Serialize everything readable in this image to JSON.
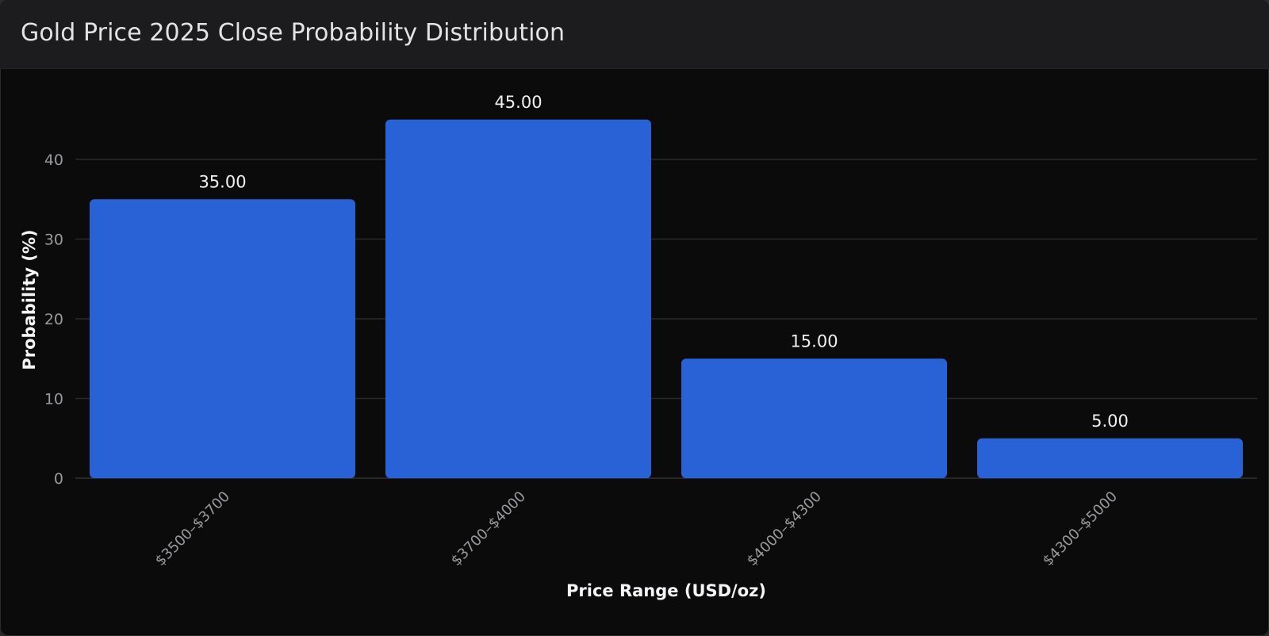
{
  "panel": {
    "title": "Gold Price 2025 Close Probability Distribution"
  },
  "colors": {
    "bar": "#2962d6",
    "grid": "#2a2a2c",
    "background": "#0b0b0b",
    "header": "#1c1c1e"
  },
  "chart_data": {
    "type": "bar",
    "categories": [
      "$3500–$3700",
      "$3700–$4000",
      "$4000–$4300",
      "$4300–$5000"
    ],
    "values": [
      35,
      45,
      15,
      5
    ],
    "value_labels": [
      "35.00",
      "45.00",
      "15.00",
      "5.00"
    ],
    "xlabel": "Price Range (USD/oz)",
    "ylabel": "Probability (%)",
    "yticks": [
      0,
      10,
      20,
      30,
      40
    ],
    "ylim": [
      0,
      45
    ],
    "grid": true,
    "legend": "none"
  }
}
